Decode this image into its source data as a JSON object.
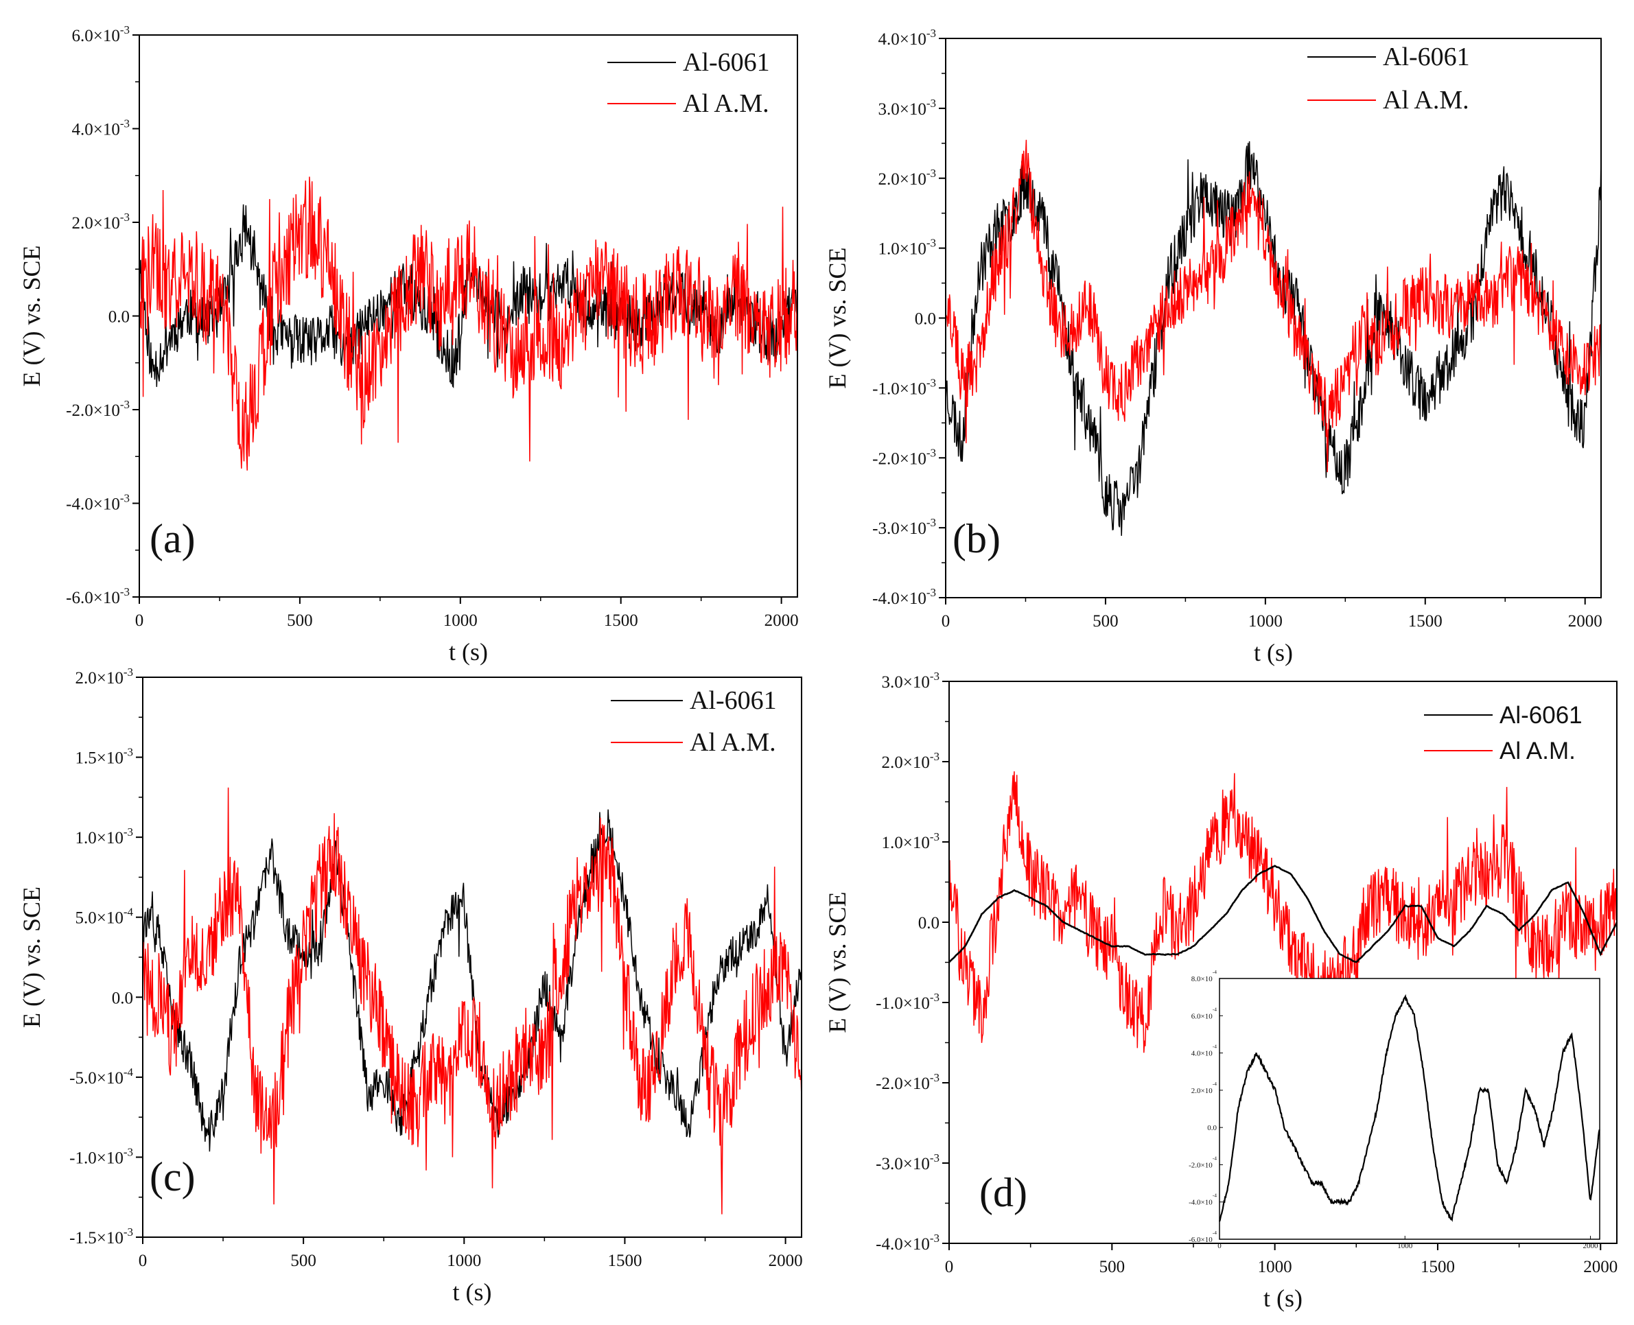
{
  "figure_caption": "",
  "chart_data": [
    {
      "type": "line",
      "panel_label": "(a)",
      "xlabel": "t (s)",
      "ylabel": "E (V) vs. SCE",
      "xlim": [
        0,
        2050
      ],
      "ylim": [
        -0.006,
        0.006
      ],
      "x_ticks": [
        0,
        500,
        1000,
        1500,
        2000
      ],
      "x_tick_labels": [
        "0",
        "500",
        "1000",
        "1500",
        "2000"
      ],
      "y_ticks": [
        -0.006,
        -0.004,
        -0.002,
        0,
        0.002,
        0.004,
        0.006
      ],
      "y_tick_labels": [
        {
          "mantissa": "-6.0×10",
          "exp": "-3"
        },
        {
          "mantissa": "-4.0×10",
          "exp": "-3"
        },
        {
          "mantissa": "-2.0×10",
          "exp": "-3"
        },
        {
          "mantissa": "0.0",
          "exp": ""
        },
        {
          "mantissa": "2.0×10",
          "exp": "-3"
        },
        {
          "mantissa": "4.0×10",
          "exp": "-3"
        },
        {
          "mantissa": "6.0×10",
          "exp": "-3"
        }
      ],
      "legend_position": "top-right",
      "series": [
        {
          "name": "Al-6061",
          "color": "#000000",
          "x": [
            0,
            40,
            90,
            150,
            210,
            260,
            300,
            330,
            370,
            420,
            480,
            540,
            600,
            650,
            700,
            760,
            820,
            880,
            930,
            980,
            1030,
            1090,
            1150,
            1200,
            1260,
            1320,
            1380,
            1440,
            1500,
            1560,
            1620,
            1680,
            1740,
            1800,
            1860,
            1920,
            1980,
            2050
          ],
          "values": [
            0.0012,
            -0.0012,
            -0.0005,
            0.0001,
            -0.0002,
            0.0002,
            0.0012,
            0.002,
            0.0008,
            -0.0003,
            -0.0005,
            -0.0006,
            -0.0003,
            -0.0009,
            -0.0002,
            0.0002,
            0.0006,
            0.0002,
            -0.0004,
            -0.0011,
            0.0009,
            0.0003,
            -0.0003,
            0.0006,
            0.0003,
            0.0008,
            0.0003,
            0.0001,
            0.0,
            -0.0002,
            0.0003,
            0.0005,
            0.0002,
            -0.0004,
            0.0004,
            -0.0002,
            -0.0006,
            0.0006
          ]
        },
        {
          "name": "Al A.M.",
          "color": "#ff0000",
          "x": [
            0,
            40,
            90,
            150,
            210,
            260,
            300,
            330,
            370,
            420,
            480,
            540,
            600,
            650,
            700,
            760,
            820,
            880,
            930,
            980,
            1030,
            1090,
            1150,
            1200,
            1260,
            1320,
            1380,
            1440,
            1500,
            1560,
            1620,
            1680,
            1740,
            1800,
            1860,
            1920,
            1980,
            2050
          ],
          "values": [
            0.0005,
            0.0012,
            0.0006,
            0.0011,
            0.0004,
            0.0003,
            -0.0018,
            -0.0025,
            -0.0014,
            0.0005,
            0.0015,
            0.002,
            0.0008,
            -0.0006,
            -0.0014,
            -0.0008,
            0.0002,
            0.0011,
            0.0003,
            0.0004,
            0.0012,
            0.0001,
            -0.0007,
            -0.0006,
            -0.0003,
            -0.0005,
            0.0003,
            0.0007,
            0.0002,
            -0.0002,
            0.0001,
            0.0005,
            0.0002,
            -0.0004,
            0.0006,
            0.0,
            -0.0003,
            0.0003
          ]
        }
      ]
    },
    {
      "type": "line",
      "panel_label": "(b)",
      "xlabel": "t (s)",
      "ylabel": "E (V) vs. SCE",
      "xlim": [
        0,
        2050
      ],
      "ylim": [
        -0.004,
        0.004
      ],
      "x_ticks": [
        0,
        500,
        1000,
        1500,
        2000
      ],
      "x_tick_labels": [
        "0",
        "500",
        "1000",
        "1500",
        "2000"
      ],
      "y_ticks": [
        -0.004,
        -0.003,
        -0.002,
        -0.001,
        0,
        0.001,
        0.002,
        0.003,
        0.004
      ],
      "y_tick_labels": [
        {
          "mantissa": "-4.0×10",
          "exp": "-3"
        },
        {
          "mantissa": "-3.0×10",
          "exp": "-3"
        },
        {
          "mantissa": "-2.0×10",
          "exp": "-3"
        },
        {
          "mantissa": "-1.0×10",
          "exp": "-3"
        },
        {
          "mantissa": "0.0",
          "exp": ""
        },
        {
          "mantissa": "1.0×10",
          "exp": "-3"
        },
        {
          "mantissa": "2.0×10",
          "exp": "-3"
        },
        {
          "mantissa": "3.0×10",
          "exp": "-3"
        },
        {
          "mantissa": "4.0×10",
          "exp": "-3"
        }
      ],
      "legend_position": "top-right",
      "series": [
        {
          "name": "Al-6061",
          "color": "#000000",
          "x": [
            0,
            50,
            100,
            150,
            200,
            250,
            300,
            350,
            400,
            450,
            500,
            550,
            600,
            650,
            700,
            750,
            800,
            850,
            900,
            950,
            1000,
            1050,
            1100,
            1150,
            1200,
            1250,
            1300,
            1350,
            1400,
            1450,
            1500,
            1550,
            1600,
            1650,
            1700,
            1750,
            1800,
            1850,
            1900,
            1950,
            2000,
            2050
          ],
          "values": [
            -0.001,
            -0.0018,
            0.0006,
            0.0012,
            0.0014,
            0.002,
            0.0015,
            0.0005,
            -0.0008,
            -0.0015,
            -0.0025,
            -0.0028,
            -0.0022,
            -0.0008,
            0.0006,
            0.0012,
            0.0018,
            0.0016,
            0.0014,
            0.0022,
            0.0015,
            0.0005,
            0.0002,
            -0.0008,
            -0.0018,
            -0.0022,
            -0.0012,
            0.0002,
            -0.0002,
            -0.0008,
            -0.0012,
            -0.0008,
            -0.0004,
            0.0,
            0.0015,
            0.0018,
            0.0012,
            0.0006,
            -0.0002,
            -0.0012,
            -0.0016,
            0.002
          ]
        },
        {
          "name": "Al A.M.",
          "color": "#ff0000",
          "x": [
            0,
            50,
            100,
            150,
            200,
            250,
            300,
            350,
            400,
            450,
            500,
            550,
            600,
            650,
            700,
            750,
            800,
            850,
            900,
            950,
            1000,
            1050,
            1100,
            1150,
            1200,
            1250,
            1300,
            1350,
            1400,
            1450,
            1500,
            1550,
            1600,
            1650,
            1700,
            1750,
            1800,
            1850,
            1900,
            1950,
            2000,
            2050
          ],
          "values": [
            0.0002,
            -0.0008,
            -0.0006,
            0.0006,
            0.0012,
            0.0022,
            0.0008,
            -0.0001,
            -0.0002,
            0.0002,
            -0.0008,
            -0.0012,
            -0.0006,
            -0.0002,
            0.0002,
            0.0004,
            0.0005,
            0.0008,
            0.0012,
            0.0017,
            0.0012,
            0.0003,
            -0.0003,
            -0.0009,
            -0.0014,
            -0.0008,
            -0.0002,
            -0.0004,
            -0.0001,
            0.0002,
            0.0003,
            0.0002,
            0.0001,
            0.0004,
            0.0002,
            0.0005,
            0.0006,
            0.0002,
            -0.0002,
            -0.0006,
            -0.0008,
            -0.0004
          ]
        }
      ]
    },
    {
      "type": "line",
      "panel_label": "(c)",
      "xlabel": "t (s)",
      "ylabel": "E (V) vs. SCE",
      "xlim": [
        0,
        2050
      ],
      "ylim": [
        -0.0015,
        0.002
      ],
      "x_ticks": [
        0,
        500,
        1000,
        1500,
        2000
      ],
      "x_tick_labels": [
        "0",
        "500",
        "1000",
        "1500",
        "2000"
      ],
      "y_ticks": [
        -0.0015,
        -0.001,
        -0.0005,
        0,
        0.0005,
        0.001,
        0.0015,
        0.002
      ],
      "y_tick_labels": [
        {
          "mantissa": "-1.5×10",
          "exp": "-3"
        },
        {
          "mantissa": "-1.0×10",
          "exp": "-3"
        },
        {
          "mantissa": "-5.0×10",
          "exp": "-4"
        },
        {
          "mantissa": "0.0",
          "exp": ""
        },
        {
          "mantissa": "5.0×10",
          "exp": "-4"
        },
        {
          "mantissa": "1.0×10",
          "exp": "-3"
        },
        {
          "mantissa": "1.5×10",
          "exp": "-3"
        },
        {
          "mantissa": "2.0×10",
          "exp": "-3"
        }
      ],
      "legend_position": "top-right",
      "series": [
        {
          "name": "Al-6061",
          "color": "#000000",
          "x": [
            0,
            50,
            100,
            150,
            200,
            250,
            300,
            350,
            400,
            450,
            500,
            550,
            600,
            650,
            700,
            750,
            800,
            850,
            900,
            950,
            1000,
            1050,
            1100,
            1150,
            1200,
            1250,
            1300,
            1350,
            1400,
            1450,
            1500,
            1550,
            1600,
            1650,
            1700,
            1750,
            1800,
            1850,
            1900,
            1950,
            2000,
            2050
          ],
          "values": [
            0.0005,
            0.0004,
            -0.0002,
            -0.0004,
            -0.0009,
            -0.0006,
            0.0002,
            0.0005,
            0.0009,
            0.0004,
            0.0003,
            0.0003,
            0.0009,
            0.0002,
            -0.0006,
            -0.0005,
            -0.0008,
            -0.0004,
            0.0001,
            0.0005,
            0.0006,
            -0.0004,
            -0.0008,
            -0.0006,
            -0.0004,
            0.0001,
            -0.0003,
            0.0004,
            0.0009,
            0.0011,
            0.0006,
            0.0,
            -0.0004,
            -0.0006,
            -0.0008,
            -0.0003,
            0.0002,
            0.0003,
            0.0004,
            0.0006,
            -0.0004,
            0.0002
          ]
        },
        {
          "name": "Al A.M.",
          "color": "#ff0000",
          "x": [
            0,
            50,
            100,
            150,
            200,
            250,
            300,
            350,
            400,
            450,
            500,
            550,
            600,
            650,
            700,
            750,
            800,
            850,
            900,
            950,
            1000,
            1050,
            1100,
            1150,
            1200,
            1250,
            1300,
            1350,
            1400,
            1450,
            1500,
            1550,
            1600,
            1650,
            1700,
            1750,
            1800,
            1850,
            1900,
            1950,
            2000,
            2050
          ],
          "values": [
            0.0001,
            0.0,
            -0.0003,
            0.0003,
            0.0002,
            0.0006,
            0.0007,
            -0.0006,
            -0.0009,
            -0.0002,
            0.0003,
            0.0007,
            0.0009,
            0.0004,
            0.0001,
            -0.0002,
            -0.0006,
            -0.0007,
            -0.0004,
            -0.0006,
            -0.0002,
            -0.0003,
            -0.0007,
            -0.0005,
            -0.0003,
            -0.0004,
            0.0002,
            0.0006,
            0.0008,
            0.0009,
            0.0001,
            -0.0006,
            -0.0004,
            0.0002,
            0.0004,
            -0.0004,
            -0.0008,
            -0.0004,
            -0.0001,
            0.0001,
            0.0002,
            -0.0006
          ]
        }
      ]
    },
    {
      "type": "line",
      "panel_label": "(d)",
      "xlabel": "t (s)",
      "ylabel": "E (V) vs. SCE",
      "xlim": [
        0,
        2050
      ],
      "ylim": [
        -0.004,
        0.003
      ],
      "x_ticks": [
        0,
        500,
        1000,
        1500,
        2000
      ],
      "x_tick_labels": [
        "0",
        "500",
        "1000",
        "1500",
        "2000"
      ],
      "y_ticks": [
        -0.004,
        -0.003,
        -0.002,
        -0.001,
        0,
        0.001,
        0.002,
        0.003
      ],
      "y_tick_labels": [
        {
          "mantissa": "-4.0×10",
          "exp": "-3"
        },
        {
          "mantissa": "-3.0×10",
          "exp": "-3"
        },
        {
          "mantissa": "-2.0×10",
          "exp": "-3"
        },
        {
          "mantissa": "-1.0×10",
          "exp": "-3"
        },
        {
          "mantissa": "0.0",
          "exp": ""
        },
        {
          "mantissa": "1.0×10",
          "exp": "-3"
        },
        {
          "mantissa": "2.0×10",
          "exp": "-3"
        },
        {
          "mantissa": "3.0×10",
          "exp": "-3"
        }
      ],
      "legend_position": "top-right",
      "series": [
        {
          "name": "Al-6061",
          "color": "#000000",
          "x": [
            0,
            50,
            100,
            150,
            200,
            250,
            300,
            350,
            400,
            450,
            500,
            550,
            600,
            650,
            700,
            750,
            800,
            850,
            900,
            950,
            1000,
            1050,
            1100,
            1150,
            1200,
            1250,
            1300,
            1350,
            1400,
            1450,
            1500,
            1550,
            1600,
            1650,
            1700,
            1750,
            1800,
            1850,
            1900,
            1950,
            2000,
            2050
          ],
          "values": [
            -0.0005,
            -0.0003,
            0.0001,
            0.0003,
            0.0004,
            0.0003,
            0.0002,
            0.0,
            -0.0001,
            -0.0002,
            -0.0003,
            -0.0003,
            -0.0004,
            -0.0004,
            -0.0004,
            -0.0003,
            -0.0001,
            0.0001,
            0.0004,
            0.0006,
            0.0007,
            0.0006,
            0.0003,
            -0.0001,
            -0.0004,
            -0.0005,
            -0.0003,
            -0.0001,
            0.0002,
            0.0002,
            -0.0002,
            -0.0003,
            -0.0001,
            0.0002,
            0.0001,
            -0.0001,
            0.0001,
            0.0004,
            0.0005,
            0.0001,
            -0.0004,
            0.0
          ]
        },
        {
          "name": "Al A.M.",
          "color": "#ff0000",
          "x": [
            0,
            50,
            100,
            150,
            200,
            250,
            300,
            350,
            400,
            450,
            500,
            550,
            600,
            650,
            700,
            750,
            800,
            850,
            900,
            950,
            1000,
            1050,
            1100,
            1150,
            1200,
            1250,
            1300,
            1350,
            1400,
            1450,
            1500,
            1550,
            1600,
            1650,
            1700,
            1750,
            1800,
            1850,
            1900,
            1950,
            2000,
            2050
          ],
          "values": [
            0.0008,
            -0.0006,
            -0.0012,
            0.0003,
            0.0017,
            0.0006,
            0.0003,
            0.0001,
            0.0004,
            -0.0002,
            -0.0003,
            -0.001,
            -0.0013,
            0.0002,
            -0.0001,
            0.0002,
            0.0009,
            0.0013,
            0.0011,
            0.0008,
            0.0003,
            -0.0003,
            -0.0006,
            -0.0008,
            -0.0007,
            -0.0004,
            0.0002,
            0.0003,
            0.0001,
            -0.0001,
            0.0003,
            0.0002,
            0.0006,
            0.0006,
            0.0008,
            0.0004,
            -0.0004,
            -0.0002,
            0.0001,
            -0.0001,
            0.0,
            0.0003
          ]
        }
      ],
      "inset": {
        "type": "line",
        "series_name": "Al-6061",
        "xlim": [
          0,
          2050
        ],
        "ylim": [
          -0.0006,
          0.0008
        ],
        "x_tick_labels": [
          "0",
          "1000",
          "2000"
        ],
        "x_ticks": [
          0,
          1000,
          2000
        ],
        "y_ticks": [
          -0.0006,
          -0.0004,
          -0.0002,
          0,
          0.0002,
          0.0004,
          0.0006,
          0.0008
        ],
        "y_tick_labels": [
          {
            "mantissa": "-6.0×10",
            "exp": "-4"
          },
          {
            "mantissa": "-4.0×10",
            "exp": "-4"
          },
          {
            "mantissa": "-2.0×10",
            "exp": "-4"
          },
          {
            "mantissa": "0.0",
            "exp": ""
          },
          {
            "mantissa": "2.0×10",
            "exp": "-4"
          },
          {
            "mantissa": "4.0×10",
            "exp": "-4"
          },
          {
            "mantissa": "6.0×10",
            "exp": "-4"
          },
          {
            "mantissa": "8.0×10",
            "exp": "-4"
          }
        ]
      }
    }
  ]
}
